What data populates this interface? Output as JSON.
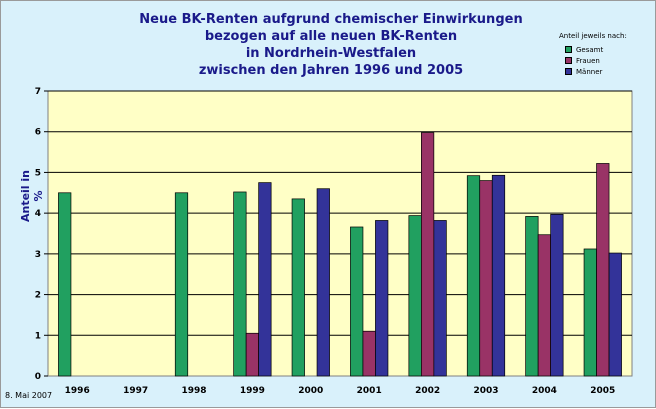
{
  "chart_data": {
    "type": "bar",
    "title_lines": [
      "Neue BK-Renten aufgrund chemischer Einwirkungen",
      "bezogen auf alle neuen BK-Renten",
      "in Nordrhein-Westfalen",
      "zwischen den Jahren 1996 und 2005"
    ],
    "ylabel": "Anteil in %",
    "xlabel": "",
    "ylim": [
      0,
      7
    ],
    "y_ticks": [
      "0",
      "1",
      "2",
      "3",
      "4",
      "5",
      "6",
      "7"
    ],
    "grid": "horizontal",
    "legend_title": "Anteil jeweils nach:",
    "legend_position": "top-right",
    "categories": [
      "1996",
      "1997",
      "1998",
      "1999",
      "2000",
      "2001",
      "2002",
      "2003",
      "2004",
      "2005"
    ],
    "series": [
      {
        "name": "Gesamt",
        "color": "#21a060",
        "values": [
          4.5,
          null,
          4.5,
          4.52,
          4.35,
          3.66,
          3.94,
          4.92,
          3.92,
          3.12
        ]
      },
      {
        "name": "Frauen",
        "color": "#993366",
        "values": [
          null,
          null,
          null,
          1.05,
          null,
          1.1,
          5.98,
          4.8,
          3.47,
          5.22
        ]
      },
      {
        "name": "Männer",
        "color": "#333399",
        "values": [
          null,
          null,
          null,
          4.75,
          4.6,
          3.82,
          3.82,
          4.93,
          3.97,
          3.02
        ]
      }
    ]
  },
  "footer": {
    "date": "8. Mai 2007"
  }
}
